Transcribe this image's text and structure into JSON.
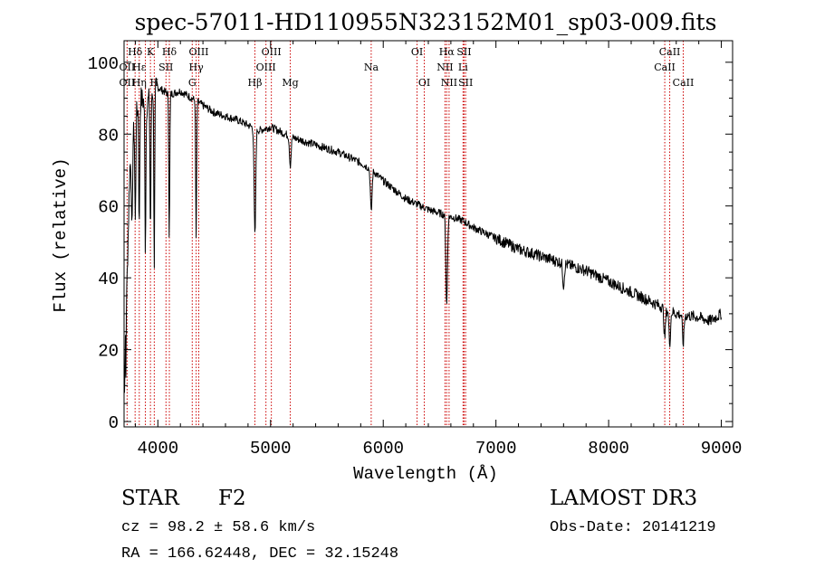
{
  "chart_data": {
    "type": "line",
    "title": "spec-57011-HD110955N323152M01_sp03-009.fits",
    "xlabel": "Wavelength (Å)",
    "ylabel": "Flux (relative)",
    "xlim": [
      3700,
      9100
    ],
    "ylim": [
      -1.5,
      106
    ],
    "x_ticks": [
      4000,
      5000,
      6000,
      7000,
      8000,
      9000
    ],
    "x_tick_labels": [
      "4000",
      "5000",
      "6000",
      "7000",
      "8000",
      "9000"
    ],
    "y_ticks": [
      0,
      20,
      40,
      60,
      80,
      100
    ],
    "y_tick_labels": [
      "0",
      "20",
      "40",
      "60",
      "80",
      "100"
    ],
    "series": [
      {
        "name": "spectrum",
        "color": "#000000",
        "continuum": {
          "x": [
            3700,
            3750,
            3800,
            3850,
            3900,
            3950,
            4000,
            4100,
            4200,
            4300,
            4400,
            4500,
            4700,
            4900,
            5000,
            5200,
            5400,
            5600,
            5800,
            5900,
            6000,
            6200,
            6400,
            6500,
            6600,
            6700,
            6800,
            7000,
            7200,
            7400,
            7600,
            7800,
            8000,
            8200,
            8400,
            8600,
            8800,
            8900,
            9000
          ],
          "y": [
            5,
            70,
            85,
            90,
            88,
            92,
            93,
            91,
            92,
            90,
            88,
            86,
            84,
            81,
            82,
            79,
            77,
            75,
            72,
            70,
            67,
            62,
            59,
            58,
            57,
            56,
            54,
            51,
            48,
            46,
            44,
            42,
            39,
            36,
            33,
            30,
            29,
            28,
            30
          ]
        },
        "absorption_lines": [
          {
            "x": 3770,
            "depth": 25
          },
          {
            "x": 3800,
            "depth": 30
          },
          {
            "x": 3835,
            "depth": 35
          },
          {
            "x": 3889,
            "depth": 40
          },
          {
            "x": 3934,
            "depth": 38
          },
          {
            "x": 3968,
            "depth": 48
          },
          {
            "x": 4101,
            "depth": 40
          },
          {
            "x": 4340,
            "depth": 38
          },
          {
            "x": 4861,
            "depth": 30
          },
          {
            "x": 5175,
            "depth": 8
          },
          {
            "x": 5893,
            "depth": 12
          },
          {
            "x": 6563,
            "depth": 25
          },
          {
            "x": 7600,
            "depth": 6
          },
          {
            "x": 8498,
            "depth": 8
          },
          {
            "x": 8542,
            "depth": 9
          },
          {
            "x": 8662,
            "depth": 8
          }
        ]
      }
    ],
    "line_markers": [
      {
        "label": "Hδ",
        "wavelength": 3798,
        "row": 1
      },
      {
        "label": "OII",
        "wavelength": 3727,
        "row": 2
      },
      {
        "label": "Hε",
        "wavelength": 3835,
        "row": 2
      },
      {
        "label": "OII",
        "wavelength": 3727,
        "row": 3
      },
      {
        "label": "Hη",
        "wavelength": 3835,
        "row": 3
      },
      {
        "label": "K",
        "wavelength": 3934,
        "row": 1
      },
      {
        "label": "SII",
        "wavelength": 4072,
        "row": 2
      },
      {
        "label": "H",
        "wavelength": 3968,
        "row": 3
      },
      {
        "label": "Hδ",
        "wavelength": 4102,
        "row": 1
      },
      {
        "label": "OIII",
        "wavelength": 4363,
        "row": 1
      },
      {
        "label": "Hγ",
        "wavelength": 4340,
        "row": 2
      },
      {
        "label": "G",
        "wavelength": 4305,
        "row": 3
      },
      {
        "label": "OIII",
        "wavelength": 5007,
        "row": 1
      },
      {
        "label": "OIII",
        "wavelength": 4959,
        "row": 2
      },
      {
        "label": "Hβ",
        "wavelength": 4861,
        "row": 3
      },
      {
        "label": "Mg",
        "wavelength": 5175,
        "row": 3
      },
      {
        "label": "Na",
        "wavelength": 5893,
        "row": 2
      },
      {
        "label": "OI",
        "wavelength": 6300,
        "row": 1
      },
      {
        "label": "OI",
        "wavelength": 6364,
        "row": 3
      },
      {
        "label": "Hα",
        "wavelength": 6563,
        "row": 1
      },
      {
        "label": "SII",
        "wavelength": 6717,
        "row": 1
      },
      {
        "label": "NII",
        "wavelength": 6548,
        "row": 2
      },
      {
        "label": "Li",
        "wavelength": 6708,
        "row": 2
      },
      {
        "label": "NII",
        "wavelength": 6584,
        "row": 3
      },
      {
        "label": "SII",
        "wavelength": 6731,
        "row": 3
      },
      {
        "label": "CaII",
        "wavelength": 8542,
        "row": 1
      },
      {
        "label": "CaII",
        "wavelength": 8498,
        "row": 2
      },
      {
        "label": "CaII",
        "wavelength": 8662,
        "row": 3
      }
    ],
    "marker_line_wavelengths": [
      3727,
      3798,
      3835,
      3889,
      3934,
      3968,
      4072,
      4102,
      4305,
      4340,
      4363,
      4861,
      4959,
      5007,
      5175,
      5893,
      6300,
      6364,
      6548,
      6563,
      6584,
      6708,
      6717,
      6731,
      8498,
      8542,
      8662
    ],
    "marker_line_color": "#cc0000",
    "line_color": "#000000",
    "axis_color": "#000000"
  },
  "info": {
    "object_type": "STAR",
    "subclass": "F2",
    "survey": "LAMOST DR3",
    "redshift": "cz = 98.2 ± 58.6 km/s",
    "obs_date": "Obs-Date: 20141219",
    "coords": "RA = 166.62448, DEC =  32.15248"
  }
}
